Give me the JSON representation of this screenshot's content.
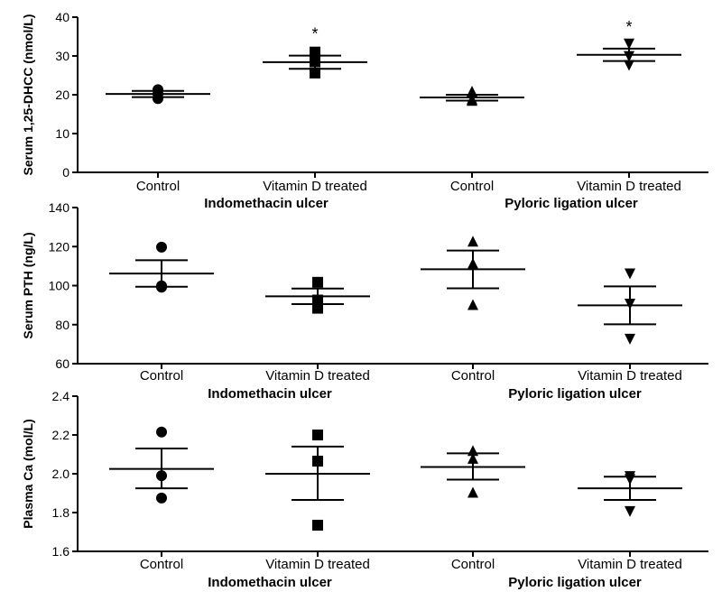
{
  "chart_data": [
    {
      "type": "scatter",
      "ylabel": "Serum 1,25-DHCC (nmol/L)",
      "ylim": [
        0,
        40
      ],
      "yticks": [
        0,
        10,
        20,
        30,
        40
      ],
      "categories": [
        "Control",
        "Vitamin D treated",
        "Control",
        "Vitamin D treated"
      ],
      "groups": [
        "Indomethacin ulcer",
        "Pyloric ligation ulcer"
      ],
      "series": [
        {
          "marker": "circle",
          "points": [
            21.3,
            20.2,
            19.0
          ],
          "mean": 20.2,
          "sem_upper": 21.0,
          "sem_lower": 19.4,
          "annotation": ""
        },
        {
          "marker": "square",
          "points": [
            31.0,
            28.5,
            25.6
          ],
          "mean": 28.4,
          "sem_upper": 30.1,
          "sem_lower": 26.7,
          "annotation": "*"
        },
        {
          "marker": "triangle-up",
          "points": [
            20.7,
            18.7,
            18.3
          ],
          "mean": 19.3,
          "sem_upper": 20.0,
          "sem_lower": 18.5,
          "annotation": ""
        },
        {
          "marker": "triangle-down",
          "points": [
            33.3,
            30.1,
            27.8
          ],
          "mean": 30.3,
          "sem_upper": 31.9,
          "sem_lower": 28.7,
          "annotation": "*"
        }
      ]
    },
    {
      "type": "scatter",
      "ylabel": "Serum PTH (ng/L)",
      "ylim": [
        60,
        140
      ],
      "yticks": [
        60,
        80,
        100,
        120,
        140
      ],
      "categories": [
        "Control",
        "Vitamin D treated",
        "Control",
        "Vitamin D treated"
      ],
      "groups": [
        "Indomethacin ulcer",
        "Pyloric ligation ulcer"
      ],
      "series": [
        {
          "marker": "circle",
          "points": [
            119.7,
            99.9,
            99.2
          ],
          "mean": 106.2,
          "sem_upper": 113.0,
          "sem_lower": 99.4,
          "annotation": ""
        },
        {
          "marker": "square",
          "points": [
            101.7,
            92.6,
            88.4
          ],
          "mean": 94.5,
          "sem_upper": 98.5,
          "sem_lower": 90.5,
          "annotation": ""
        },
        {
          "marker": "triangle-up",
          "points": [
            122.3,
            111.0,
            89.8
          ],
          "mean": 108.4,
          "sem_upper": 118.0,
          "sem_lower": 98.6,
          "annotation": ""
        },
        {
          "marker": "triangle-down",
          "points": [
            106.5,
            91.0,
            73.0
          ],
          "mean": 89.9,
          "sem_upper": 99.6,
          "sem_lower": 80.2,
          "annotation": ""
        }
      ]
    },
    {
      "type": "scatter",
      "ylabel": "Plasma Ca (mol/L)",
      "ylim": [
        1.6,
        2.4
      ],
      "yticks": [
        1.6,
        1.8,
        2.0,
        2.2,
        2.4
      ],
      "categories": [
        "Control",
        "Vitamin D treated",
        "Control",
        "Vitamin D treated"
      ],
      "groups": [
        "Indomethacin ulcer",
        "Pyloric ligation ulcer"
      ],
      "series": [
        {
          "marker": "circle",
          "points": [
            2.215,
            1.99,
            1.875
          ],
          "mean": 2.025,
          "sem_upper": 2.13,
          "sem_lower": 1.925,
          "annotation": ""
        },
        {
          "marker": "square",
          "points": [
            2.2,
            2.065,
            1.735
          ],
          "mean": 2.0,
          "sem_upper": 2.14,
          "sem_lower": 1.865,
          "annotation": ""
        },
        {
          "marker": "triangle-up",
          "points": [
            2.115,
            2.075,
            1.9
          ],
          "mean": 2.035,
          "sem_upper": 2.105,
          "sem_lower": 1.97,
          "annotation": ""
        },
        {
          "marker": "triangle-down",
          "points": [
            1.99,
            1.975,
            1.81
          ],
          "mean": 1.925,
          "sem_upper": 1.985,
          "sem_lower": 1.865,
          "annotation": ""
        }
      ]
    }
  ]
}
